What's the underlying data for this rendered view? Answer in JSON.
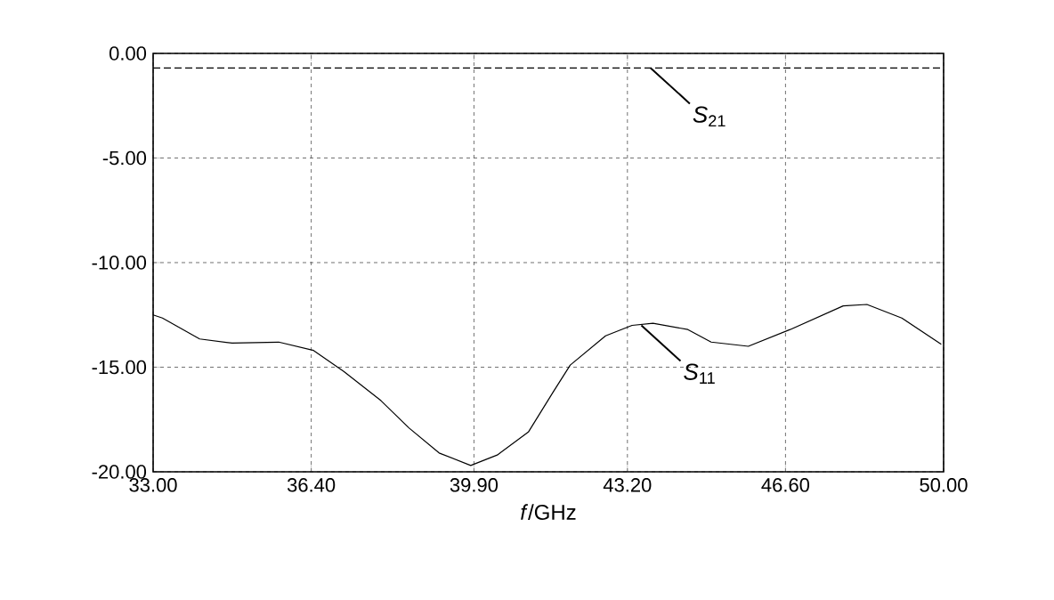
{
  "chart_data": {
    "type": "line",
    "xlabel": "*f*/GHz",
    "xlim": [
      33,
      50
    ],
    "ylim": [
      -20,
      0
    ],
    "xticks": [
      {
        "value": 33,
        "label": "33.00"
      },
      {
        "value": 36.4,
        "label": "36.40"
      },
      {
        "value": 39.9,
        "label": "39.90"
      },
      {
        "value": 43.2,
        "label": "43.20"
      },
      {
        "value": 46.6,
        "label": "46.60"
      },
      {
        "value": 50,
        "label": "50.00"
      }
    ],
    "yticks": [
      {
        "value": 0,
        "label": "0.00"
      },
      {
        "value": -5,
        "label": "-5.00"
      },
      {
        "value": -10,
        "label": "-10.00"
      },
      {
        "value": -15,
        "label": "-15.00"
      },
      {
        "value": -20,
        "label": "-20.00"
      }
    ],
    "grid": true,
    "series": [
      {
        "color": "#000000",
        "line_style": "dashed",
        "x": [
          33,
          50
        ],
        "values": [
          -0.7,
          -0.7
        ]
      },
      {
        "color": "#000000",
        "line_style": "solid",
        "x": [
          33,
          33.2,
          34.0,
          34.7,
          35.7,
          36.45,
          37.1,
          37.9,
          38.5,
          39.15,
          39.83,
          40.4,
          41.07,
          41.6,
          41.97,
          42.73,
          43.3,
          43.75,
          44.5,
          45.0,
          45.8,
          46.7,
          47.84,
          48.35,
          49.1,
          49.95
        ],
        "values": [
          -12.5,
          -12.65,
          -13.65,
          -13.85,
          -13.8,
          -14.2,
          -15.2,
          -16.6,
          -17.9,
          -19.1,
          -19.7,
          -19.2,
          -18.1,
          -16.2,
          -14.9,
          -13.5,
          -13.0,
          -12.9,
          -13.2,
          -13.8,
          -14.0,
          -13.2,
          -12.07,
          -12.0,
          -12.65,
          -13.9
        ]
      }
    ],
    "annotations": [
      {
        "text": "*S*$_{21}$",
        "x": 43.7,
        "y": -0.7
      },
      {
        "text": "*S*$_{11}$",
        "x": 43.5,
        "y": -13.0
      }
    ]
  }
}
